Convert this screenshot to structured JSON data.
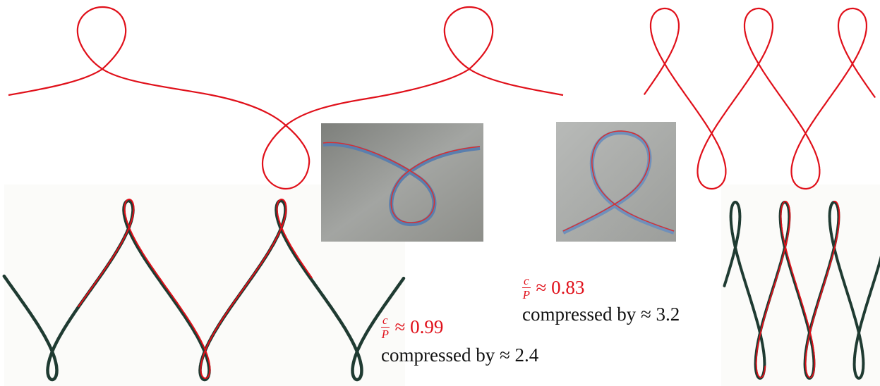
{
  "annotations": [
    {
      "ratio": {
        "numerator": "c",
        "denominator": "P",
        "value": "≈ 0.99"
      },
      "compression": "compressed by ≈ 2.4"
    },
    {
      "ratio": {
        "numerator": "c",
        "denominator": "P",
        "value": "≈ 0.83"
      },
      "compression": "compressed by ≈ 3.2"
    }
  ]
}
